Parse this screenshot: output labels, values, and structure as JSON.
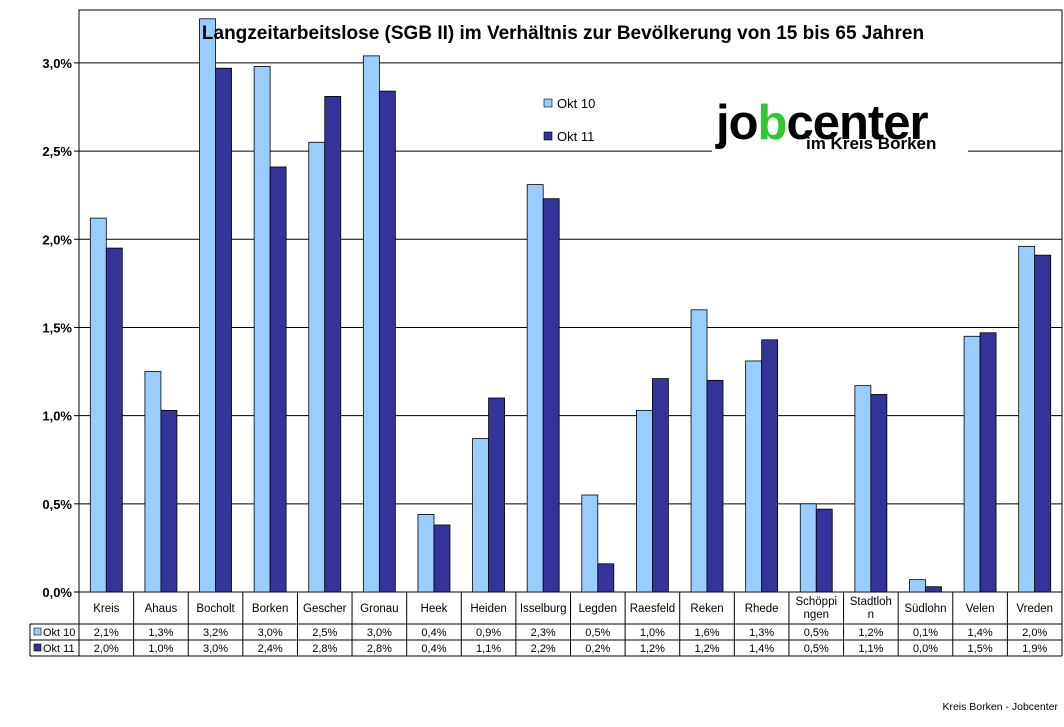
{
  "chart_data": {
    "type": "bar",
    "title": "Langzeitarbeitslose (SGB II) im Verhältnis zur Bevölkerung von 15 bis 65 Jahren",
    "categories": [
      "Kreis",
      "Ahaus",
      "Bocholt",
      "Borken",
      "Gescher",
      "Gronau",
      "Heek",
      "Heiden",
      "Isselburg",
      "Legden",
      "Raesfeld",
      "Reken",
      "Rhede",
      "Schöppingen",
      "Stadtlohn",
      "Südlohn",
      "Velen",
      "Vreden"
    ],
    "category_labels": [
      [
        "Kreis"
      ],
      [
        "Ahaus"
      ],
      [
        "Bocholt"
      ],
      [
        "Borken"
      ],
      [
        "Gescher"
      ],
      [
        "Gronau"
      ],
      [
        "Heek"
      ],
      [
        "Heiden"
      ],
      [
        "Isselburg"
      ],
      [
        "Legden"
      ],
      [
        "Raesfeld"
      ],
      [
        "Reken"
      ],
      [
        "Rhede"
      ],
      [
        "Schöppi",
        "ngen"
      ],
      [
        "Stadtloh",
        "n"
      ],
      [
        "Südlohn"
      ],
      [
        "Velen"
      ],
      [
        "Vreden"
      ]
    ],
    "series": [
      {
        "name": "Okt 10",
        "color": "#99ccff",
        "values": [
          0.0212,
          0.0125,
          0.0325,
          0.0298,
          0.0255,
          0.0304,
          0.0044,
          0.0087,
          0.0231,
          0.0055,
          0.0103,
          0.016,
          0.0131,
          0.005,
          0.0117,
          0.0007,
          0.0145,
          0.0196
        ],
        "labels": [
          "2,1%",
          "1,3%",
          "3,2%",
          "3,0%",
          "2,5%",
          "3,0%",
          "0,4%",
          "0,9%",
          "2,3%",
          "0,5%",
          "1,0%",
          "1,6%",
          "1,3%",
          "0,5%",
          "1,2%",
          "0,1%",
          "1,4%",
          "2,0%"
        ]
      },
      {
        "name": "Okt 11",
        "color": "#333399",
        "values": [
          0.0195,
          0.0103,
          0.0297,
          0.0241,
          0.0281,
          0.0284,
          0.0038,
          0.011,
          0.0223,
          0.0016,
          0.0121,
          0.012,
          0.0143,
          0.0047,
          0.0112,
          0.0003,
          0.0147,
          0.0191
        ],
        "labels": [
          "2,0%",
          "1,0%",
          "3,0%",
          "2,4%",
          "2,8%",
          "2,8%",
          "0,4%",
          "1,1%",
          "2,2%",
          "0,2%",
          "1,2%",
          "1,2%",
          "1,4%",
          "0,5%",
          "1,1%",
          "0,0%",
          "1,5%",
          "1,9%"
        ]
      }
    ],
    "ylim": [
      0,
      0.033
    ],
    "yticks": [
      0,
      0.005,
      0.01,
      0.015,
      0.02,
      0.025,
      0.03
    ],
    "ytick_labels": [
      "0,0%",
      "0,5%",
      "1,0%",
      "1,5%",
      "2,0%",
      "2,5%",
      "3,0%"
    ],
    "grid": true,
    "legend_position": "top-center",
    "data_table": true
  },
  "logo": {
    "part1": "jo",
    "part2": "center",
    "subtitle": "im Kreis Borken",
    "accent_color": "#2ec92e"
  },
  "footer": "Kreis Borken - Jobcenter"
}
